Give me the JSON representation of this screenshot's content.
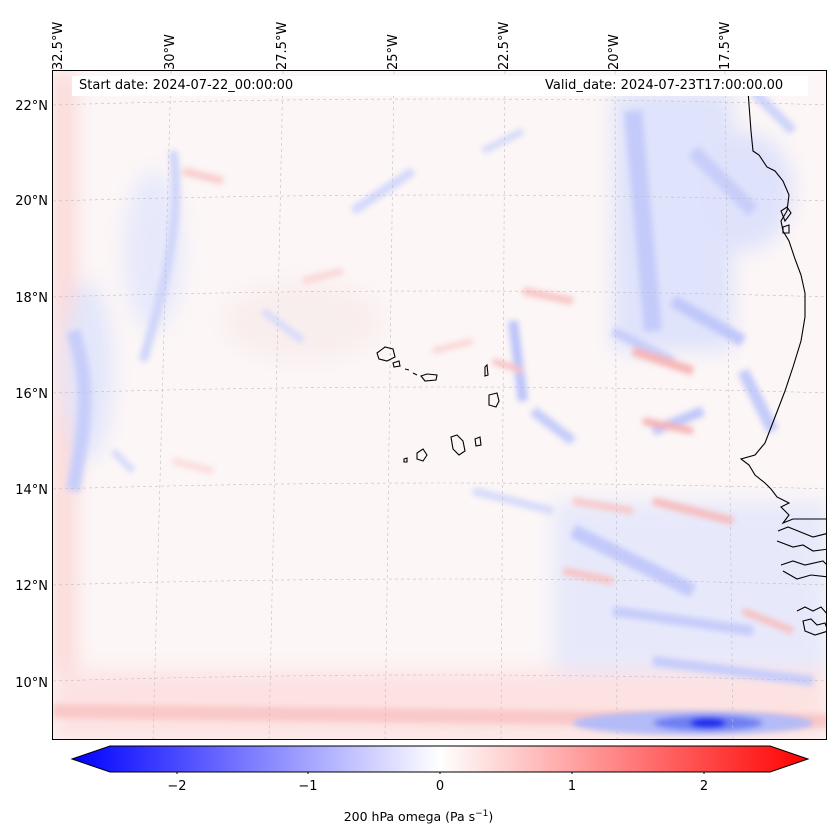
{
  "header": {
    "start_date": "Start date: 2024-07-22_00:00:00",
    "valid_date": "Valid_date: 2024-07-23T17:00:00.00"
  },
  "longitude_labels": [
    "32.5°W",
    "30°W",
    "27.5°W",
    "25°W",
    "22.5°W",
    "20°W",
    "17.5°W"
  ],
  "latitude_labels": [
    "22°N",
    "20°N",
    "18°N",
    "16°N",
    "14°N",
    "12°N",
    "10°N"
  ],
  "colorbar": {
    "ticks": [
      "−2",
      "−1",
      "0",
      "1",
      "2"
    ],
    "label_main": "200 hPa omega (Pa s",
    "label_sup": "−1",
    "label_end": ")",
    "colormap": "bwr",
    "range": [
      -2.6,
      2.6
    ],
    "extend": "both"
  },
  "colors": {
    "min": "#0000ff",
    "mid": "#ffffff",
    "max": "#ff0000",
    "coastline": "#000000"
  }
}
